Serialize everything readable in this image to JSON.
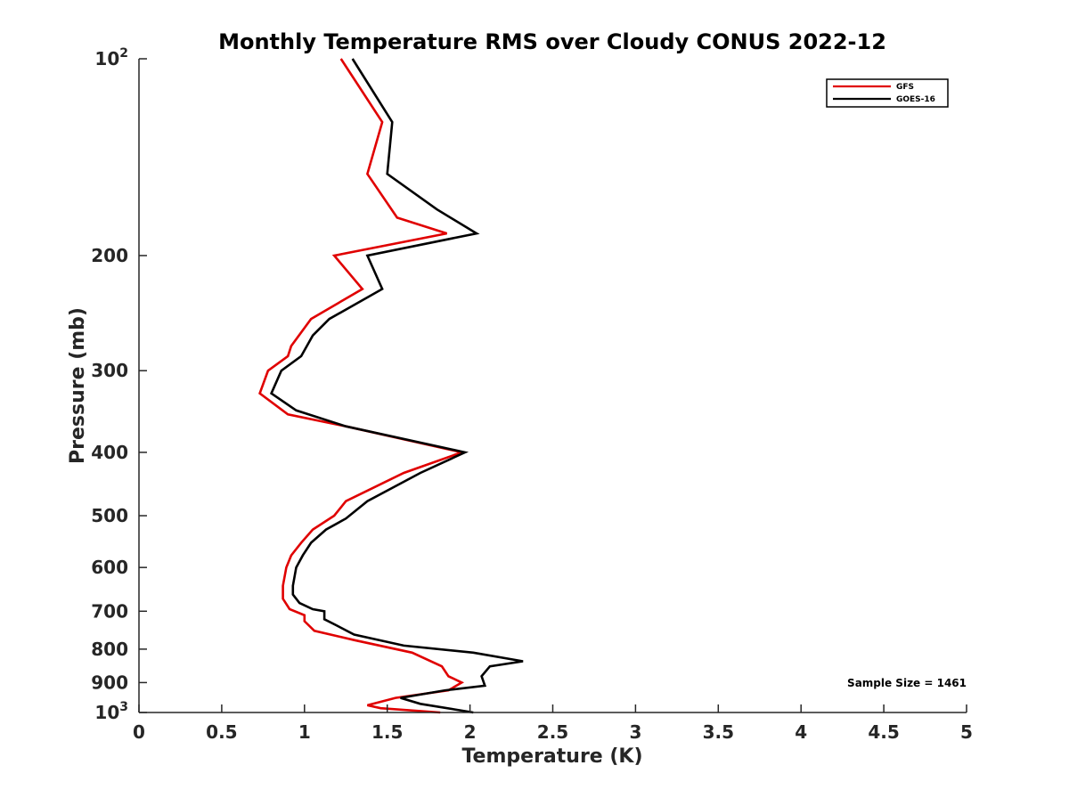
{
  "chart_data": {
    "type": "line",
    "title": "Monthly Temperature RMS over Cloudy CONUS  2022-12",
    "xlabel": "Temperature (K)",
    "ylabel": "Pressure (mb)",
    "xlim": [
      0,
      5
    ],
    "ylim": [
      100,
      1000
    ],
    "y_scale": "log",
    "y_reversed": true,
    "grid": false,
    "legend_position": "top-right",
    "x_ticks": [
      {
        "value": 0,
        "label": "0"
      },
      {
        "value": 0.5,
        "label": "0.5"
      },
      {
        "value": 1,
        "label": "1"
      },
      {
        "value": 1.5,
        "label": "1.5"
      },
      {
        "value": 2,
        "label": "2"
      },
      {
        "value": 2.5,
        "label": "2.5"
      },
      {
        "value": 3,
        "label": "3"
      },
      {
        "value": 3.5,
        "label": "3.5"
      },
      {
        "value": 4,
        "label": "4"
      },
      {
        "value": 4.5,
        "label": "4.5"
      },
      {
        "value": 5,
        "label": "5"
      }
    ],
    "y_ticks": [
      {
        "value": 100,
        "label": "10",
        "sup": "2"
      },
      {
        "value": 200,
        "label": "200"
      },
      {
        "value": 300,
        "label": "300"
      },
      {
        "value": 400,
        "label": "400"
      },
      {
        "value": 500,
        "label": "500"
      },
      {
        "value": 600,
        "label": "600"
      },
      {
        "value": 700,
        "label": "700"
      },
      {
        "value": 800,
        "label": "800"
      },
      {
        "value": 900,
        "label": "900"
      },
      {
        "value": 1000,
        "label": "10",
        "sup": "3"
      }
    ],
    "annotation": "Sample Size = 1461",
    "series": [
      {
        "name": "GFS",
        "color": "#e00000",
        "points": [
          {
            "x": 1.22,
            "y": 100
          },
          {
            "x": 1.47,
            "y": 125
          },
          {
            "x": 1.38,
            "y": 150
          },
          {
            "x": 1.56,
            "y": 175
          },
          {
            "x": 1.86,
            "y": 185
          },
          {
            "x": 1.18,
            "y": 200
          },
          {
            "x": 1.35,
            "y": 225
          },
          {
            "x": 1.04,
            "y": 250
          },
          {
            "x": 0.92,
            "y": 275
          },
          {
            "x": 0.9,
            "y": 285
          },
          {
            "x": 0.78,
            "y": 300
          },
          {
            "x": 0.73,
            "y": 325
          },
          {
            "x": 0.9,
            "y": 350
          },
          {
            "x": 1.25,
            "y": 365
          },
          {
            "x": 1.95,
            "y": 400
          },
          {
            "x": 1.6,
            "y": 430
          },
          {
            "x": 1.25,
            "y": 475
          },
          {
            "x": 1.18,
            "y": 500
          },
          {
            "x": 1.05,
            "y": 525
          },
          {
            "x": 0.98,
            "y": 550
          },
          {
            "x": 0.92,
            "y": 575
          },
          {
            "x": 0.89,
            "y": 600
          },
          {
            "x": 0.87,
            "y": 640
          },
          {
            "x": 0.87,
            "y": 670
          },
          {
            "x": 0.91,
            "y": 695
          },
          {
            "x": 1.0,
            "y": 710
          },
          {
            "x": 1.0,
            "y": 725
          },
          {
            "x": 1.06,
            "y": 750
          },
          {
            "x": 1.3,
            "y": 775
          },
          {
            "x": 1.65,
            "y": 810
          },
          {
            "x": 1.83,
            "y": 850
          },
          {
            "x": 1.87,
            "y": 880
          },
          {
            "x": 1.95,
            "y": 900
          },
          {
            "x": 1.87,
            "y": 925
          },
          {
            "x": 1.55,
            "y": 950
          },
          {
            "x": 1.38,
            "y": 975
          },
          {
            "x": 1.46,
            "y": 985
          },
          {
            "x": 1.82,
            "y": 1000
          }
        ]
      },
      {
        "name": "GOES-16",
        "color": "#000000",
        "points": [
          {
            "x": 1.29,
            "y": 100
          },
          {
            "x": 1.53,
            "y": 125
          },
          {
            "x": 1.5,
            "y": 150
          },
          {
            "x": 1.8,
            "y": 170
          },
          {
            "x": 2.04,
            "y": 185
          },
          {
            "x": 1.38,
            "y": 200
          },
          {
            "x": 1.47,
            "y": 225
          },
          {
            "x": 1.15,
            "y": 250
          },
          {
            "x": 1.05,
            "y": 265
          },
          {
            "x": 0.98,
            "y": 285
          },
          {
            "x": 0.86,
            "y": 300
          },
          {
            "x": 0.8,
            "y": 325
          },
          {
            "x": 0.95,
            "y": 345
          },
          {
            "x": 1.25,
            "y": 365
          },
          {
            "x": 1.97,
            "y": 400
          },
          {
            "x": 1.7,
            "y": 430
          },
          {
            "x": 1.38,
            "y": 475
          },
          {
            "x": 1.25,
            "y": 505
          },
          {
            "x": 1.13,
            "y": 525
          },
          {
            "x": 1.04,
            "y": 550
          },
          {
            "x": 0.99,
            "y": 575
          },
          {
            "x": 0.95,
            "y": 600
          },
          {
            "x": 0.93,
            "y": 640
          },
          {
            "x": 0.93,
            "y": 660
          },
          {
            "x": 0.97,
            "y": 680
          },
          {
            "x": 1.05,
            "y": 695
          },
          {
            "x": 1.12,
            "y": 700
          },
          {
            "x": 1.12,
            "y": 720
          },
          {
            "x": 1.19,
            "y": 735
          },
          {
            "x": 1.3,
            "y": 760
          },
          {
            "x": 1.6,
            "y": 790
          },
          {
            "x": 2.02,
            "y": 810
          },
          {
            "x": 2.32,
            "y": 835
          },
          {
            "x": 2.12,
            "y": 850
          },
          {
            "x": 2.07,
            "y": 880
          },
          {
            "x": 2.09,
            "y": 910
          },
          {
            "x": 1.85,
            "y": 925
          },
          {
            "x": 1.58,
            "y": 950
          },
          {
            "x": 1.7,
            "y": 970
          },
          {
            "x": 2.02,
            "y": 1000
          }
        ]
      }
    ]
  }
}
